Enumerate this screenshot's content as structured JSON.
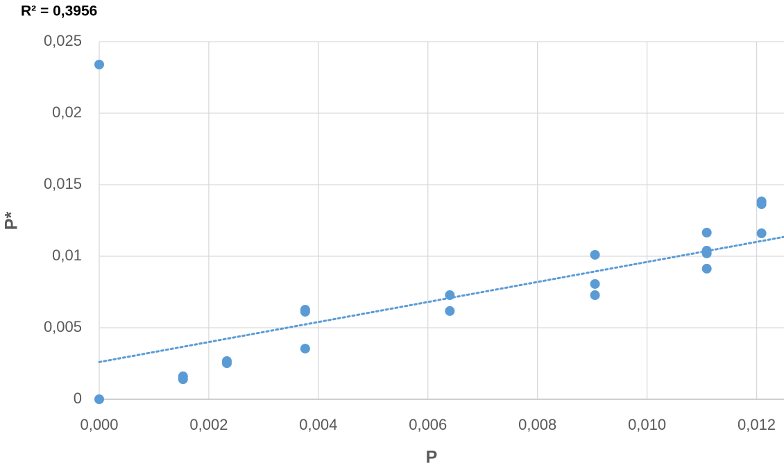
{
  "chart_data": {
    "type": "scatter",
    "annotation": "R² = 0,3956",
    "x_label": "P",
    "y_label": "P*",
    "color": "#5b9bd5",
    "x": [
      0,
      0,
      0.00153,
      0.00153,
      0.00233,
      0.00233,
      0.00376,
      0.00376,
      0.00376,
      0.0064,
      0.0064,
      0.00905,
      0.00905,
      0.00905,
      0.01109,
      0.01109,
      0.01109,
      0.01109,
      0.01209,
      0.01209,
      0.01209
    ],
    "values": [
      0.0234,
      0,
      0.0016,
      0.0014,
      0.00267,
      0.00252,
      0.00626,
      0.00612,
      0.00354,
      0.00728,
      0.00617,
      0.0101,
      0.00806,
      0.00728,
      0.01165,
      0.01039,
      0.0102,
      0.00913,
      0.01383,
      0.01364,
      0.0116
    ],
    "trendline": {
      "slope": 0.7,
      "intercept": 0.0026
    },
    "xlim": [
      0,
      0.0125
    ],
    "xticks": [
      {
        "value": 0,
        "label": "0,000"
      },
      {
        "value": 0.002,
        "label": "0,002"
      },
      {
        "value": 0.004,
        "label": "0,004"
      },
      {
        "value": 0.006,
        "label": "0,006"
      },
      {
        "value": 0.008,
        "label": "0,008"
      },
      {
        "value": 0.01,
        "label": "0,010"
      },
      {
        "value": 0.012,
        "label": "0,012"
      }
    ],
    "ylim": [
      0,
      0.025
    ],
    "yticks": [
      0,
      {
        "value": 0.005,
        "label": "0,005"
      },
      {
        "value": 0.01,
        "label": "0,01"
      },
      {
        "value": 0.015,
        "label": "0,015"
      },
      {
        "value": 0.02,
        "label": "0,02"
      },
      {
        "value": 0.025,
        "label": "0,025"
      }
    ],
    "grid": true
  }
}
